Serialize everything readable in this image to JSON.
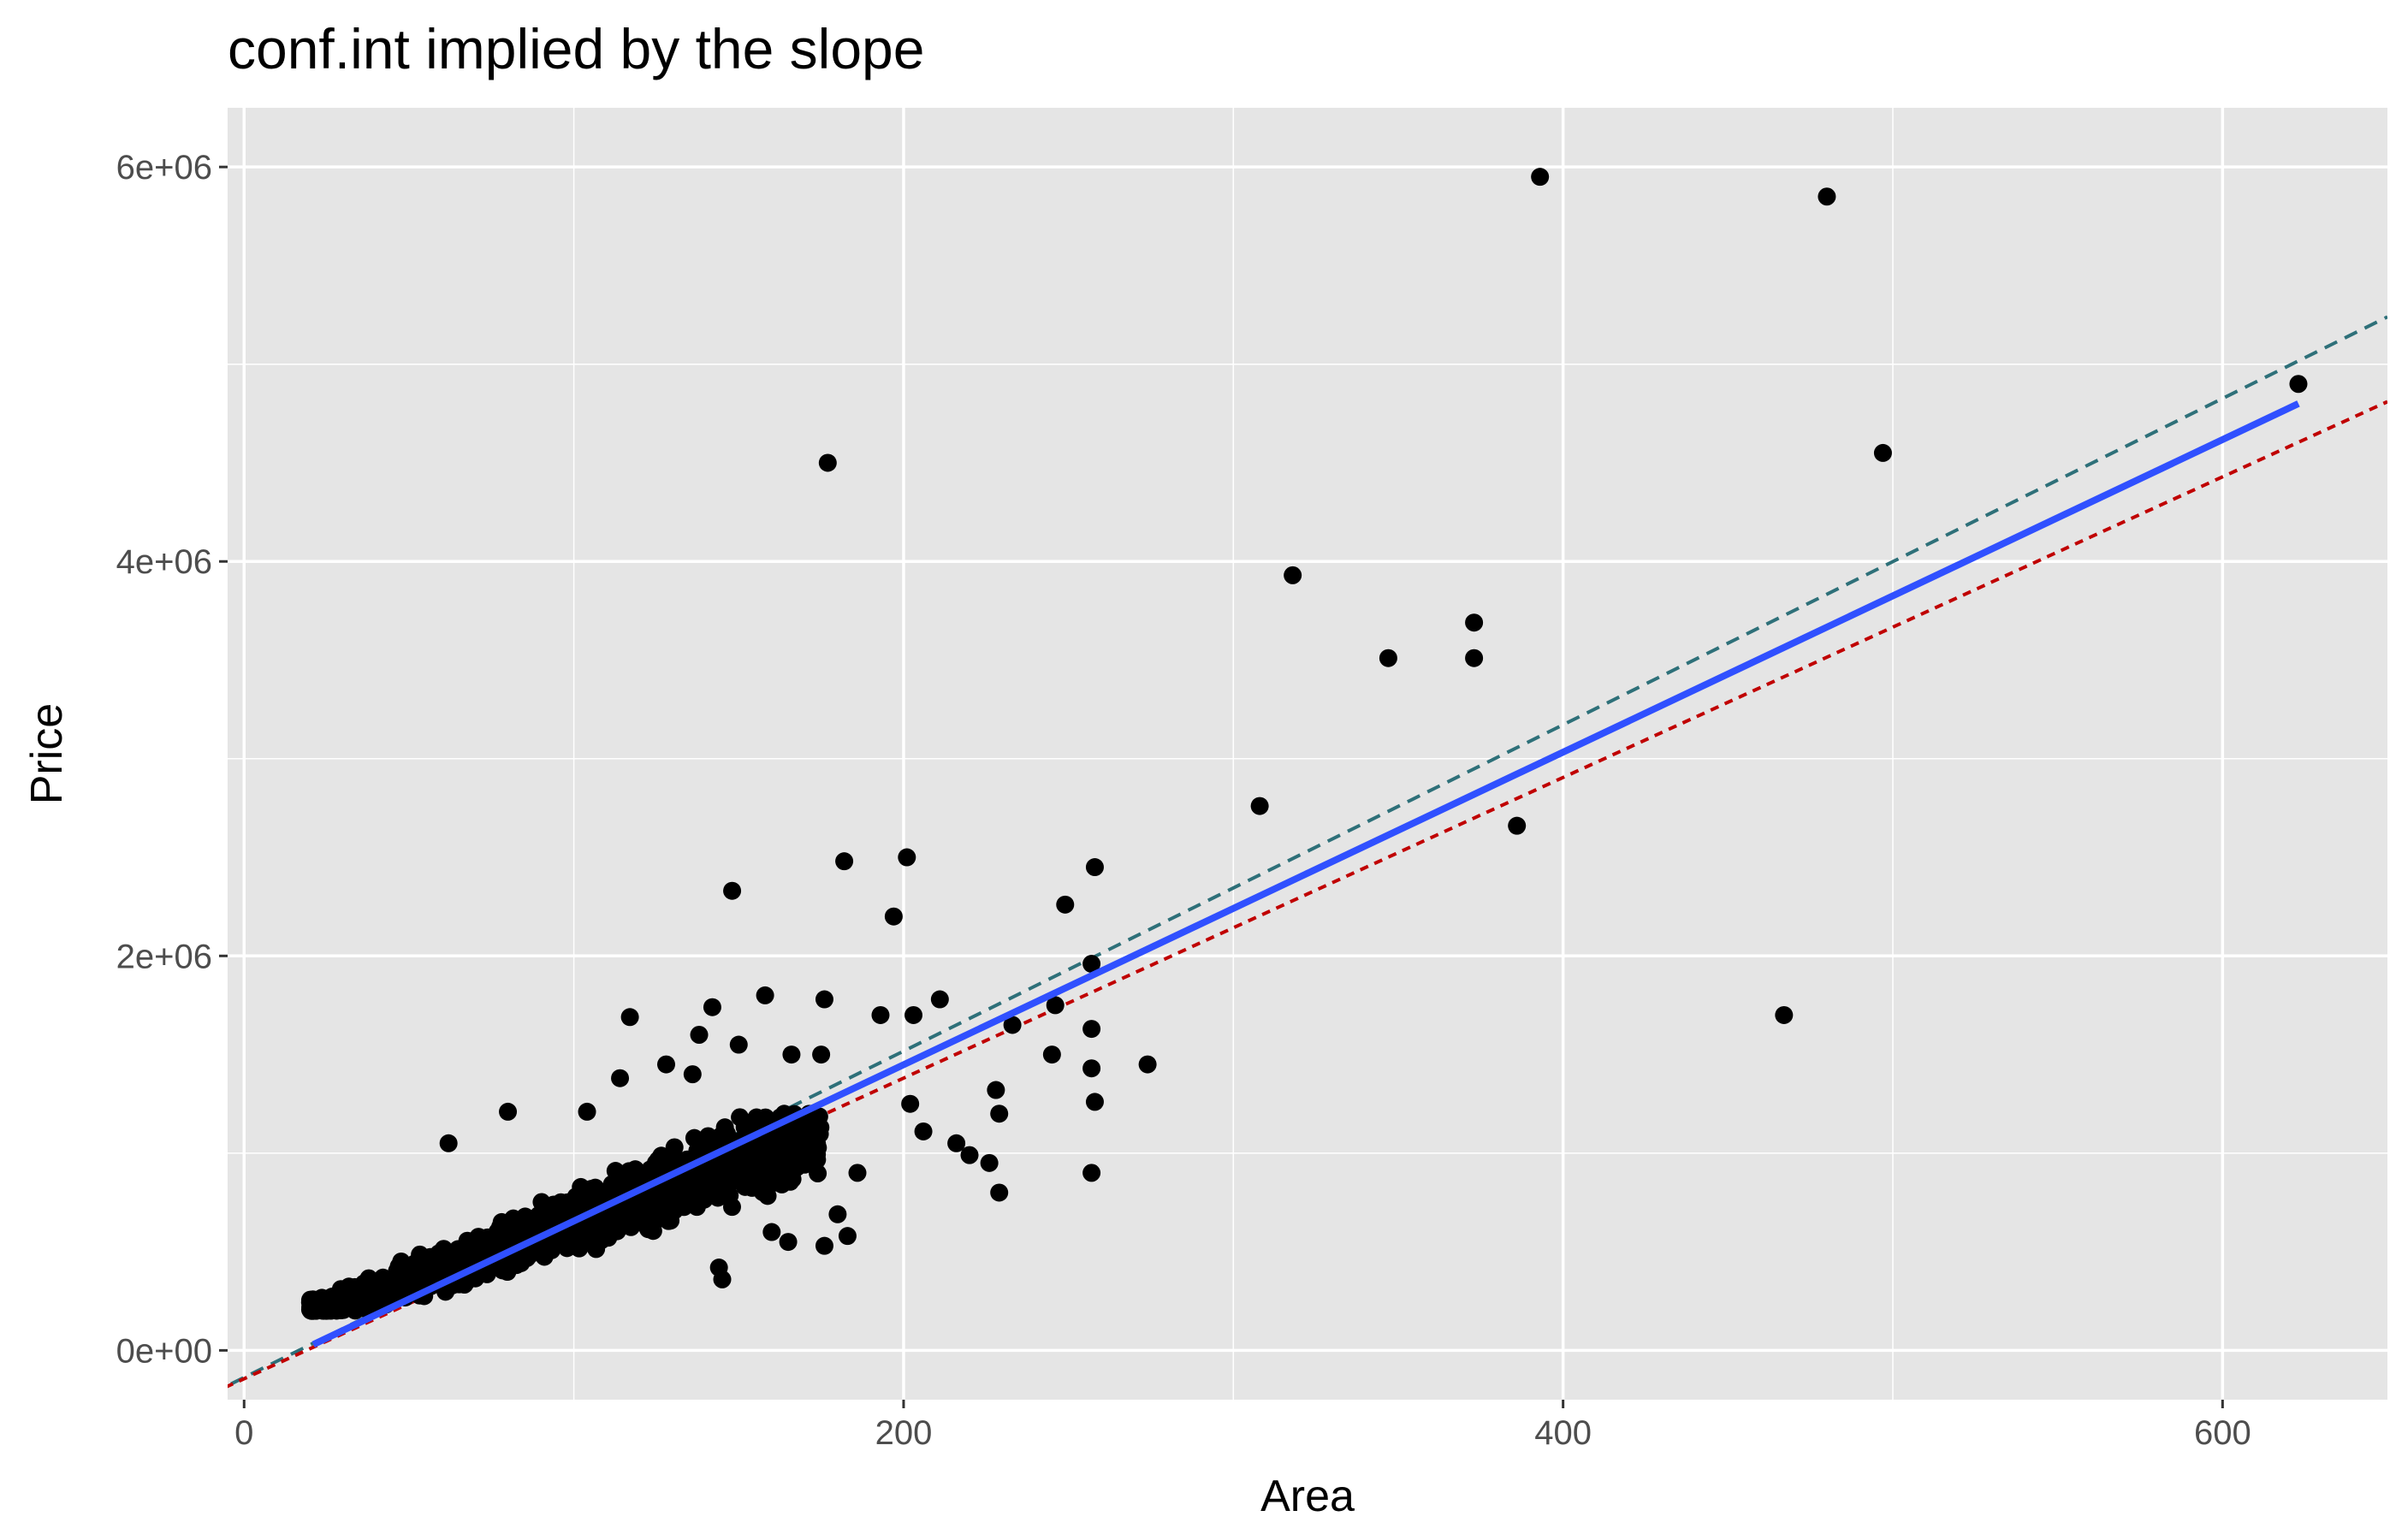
{
  "chart_data": {
    "type": "scatter",
    "title": "conf.int implied by the slope",
    "xlabel": "Area",
    "ylabel": "Price",
    "xlim": [
      -5,
      650
    ],
    "ylim": [
      -250000,
      6300000
    ],
    "x_ticks": [
      0,
      200,
      400,
      600
    ],
    "x_tick_labels": [
      "0",
      "200",
      "400",
      "600"
    ],
    "y_ticks": [
      0,
      2000000,
      4000000,
      6000000
    ],
    "y_tick_labels": [
      "0e+00",
      "2e+06",
      "4e+06",
      "6e+06"
    ],
    "grid": true,
    "legend": "none",
    "colors": {
      "panel": "#e5e5e5",
      "grid": "#ffffff",
      "points": "#000000",
      "fit_line": "#3050ff",
      "upper_line": "#2e7079",
      "lower_line": "#c00000"
    },
    "lines": [
      {
        "role": "fit",
        "style": "solid",
        "x": [
          21,
          623
        ],
        "y": [
          30000,
          4800000
        ]
      },
      {
        "role": "upper",
        "style": "dashed",
        "x": [
          -10,
          650
        ],
        "y": [
          -220000,
          5240000
        ]
      },
      {
        "role": "lower",
        "style": "dashed",
        "x": [
          -10,
          650
        ],
        "y": [
          -220000,
          4810000
        ]
      }
    ],
    "outliers": [
      {
        "x": 393,
        "y": 5950000
      },
      {
        "x": 480,
        "y": 5850000
      },
      {
        "x": 623,
        "y": 4900000
      },
      {
        "x": 497,
        "y": 4550000
      },
      {
        "x": 177,
        "y": 4500000
      },
      {
        "x": 318,
        "y": 3930000
      },
      {
        "x": 373,
        "y": 3690000
      },
      {
        "x": 347,
        "y": 3510000
      },
      {
        "x": 373,
        "y": 3510000
      },
      {
        "x": 308,
        "y": 2760000
      },
      {
        "x": 386,
        "y": 2660000
      },
      {
        "x": 467,
        "y": 1700000
      },
      {
        "x": 201,
        "y": 2500000
      },
      {
        "x": 182,
        "y": 2480000
      },
      {
        "x": 258,
        "y": 2450000
      },
      {
        "x": 148,
        "y": 2330000
      },
      {
        "x": 249,
        "y": 2260000
      },
      {
        "x": 197,
        "y": 2200000
      },
      {
        "x": 257,
        "y": 1960000
      },
      {
        "x": 158,
        "y": 1800000
      },
      {
        "x": 176,
        "y": 1780000
      },
      {
        "x": 211,
        "y": 1780000
      },
      {
        "x": 203,
        "y": 1700000
      },
      {
        "x": 193,
        "y": 1700000
      },
      {
        "x": 233,
        "y": 1650000
      },
      {
        "x": 246,
        "y": 1750000
      },
      {
        "x": 257,
        "y": 1630000
      },
      {
        "x": 274,
        "y": 1450000
      },
      {
        "x": 257,
        "y": 1430000
      },
      {
        "x": 245,
        "y": 1500000
      },
      {
        "x": 228,
        "y": 1320000
      },
      {
        "x": 258,
        "y": 1260000
      },
      {
        "x": 229,
        "y": 1200000
      },
      {
        "x": 202,
        "y": 1250000
      },
      {
        "x": 206,
        "y": 1110000
      },
      {
        "x": 216,
        "y": 1050000
      },
      {
        "x": 220,
        "y": 990000
      },
      {
        "x": 226,
        "y": 950000
      },
      {
        "x": 257,
        "y": 900000
      },
      {
        "x": 229,
        "y": 800000
      },
      {
        "x": 186,
        "y": 900000
      },
      {
        "x": 180,
        "y": 690000
      },
      {
        "x": 176,
        "y": 530000
      },
      {
        "x": 183,
        "y": 580000
      },
      {
        "x": 142,
        "y": 1740000
      },
      {
        "x": 117,
        "y": 1690000
      },
      {
        "x": 138,
        "y": 1600000
      },
      {
        "x": 150,
        "y": 1550000
      },
      {
        "x": 166,
        "y": 1500000
      },
      {
        "x": 175,
        "y": 1500000
      },
      {
        "x": 128,
        "y": 1450000
      },
      {
        "x": 136,
        "y": 1400000
      },
      {
        "x": 114,
        "y": 1380000
      },
      {
        "x": 62,
        "y": 1050000
      },
      {
        "x": 80,
        "y": 1210000
      },
      {
        "x": 104,
        "y": 1210000
      },
      {
        "x": 144,
        "y": 420000
      },
      {
        "x": 145,
        "y": 360000
      },
      {
        "x": 165,
        "y": 550000
      },
      {
        "x": 160,
        "y": 600000
      }
    ],
    "cluster": {
      "x_range": [
        20,
        175
      ],
      "y_range": [
        200000,
        1200000
      ],
      "note": "dense cloud of overlapping points along the fit line"
    }
  }
}
